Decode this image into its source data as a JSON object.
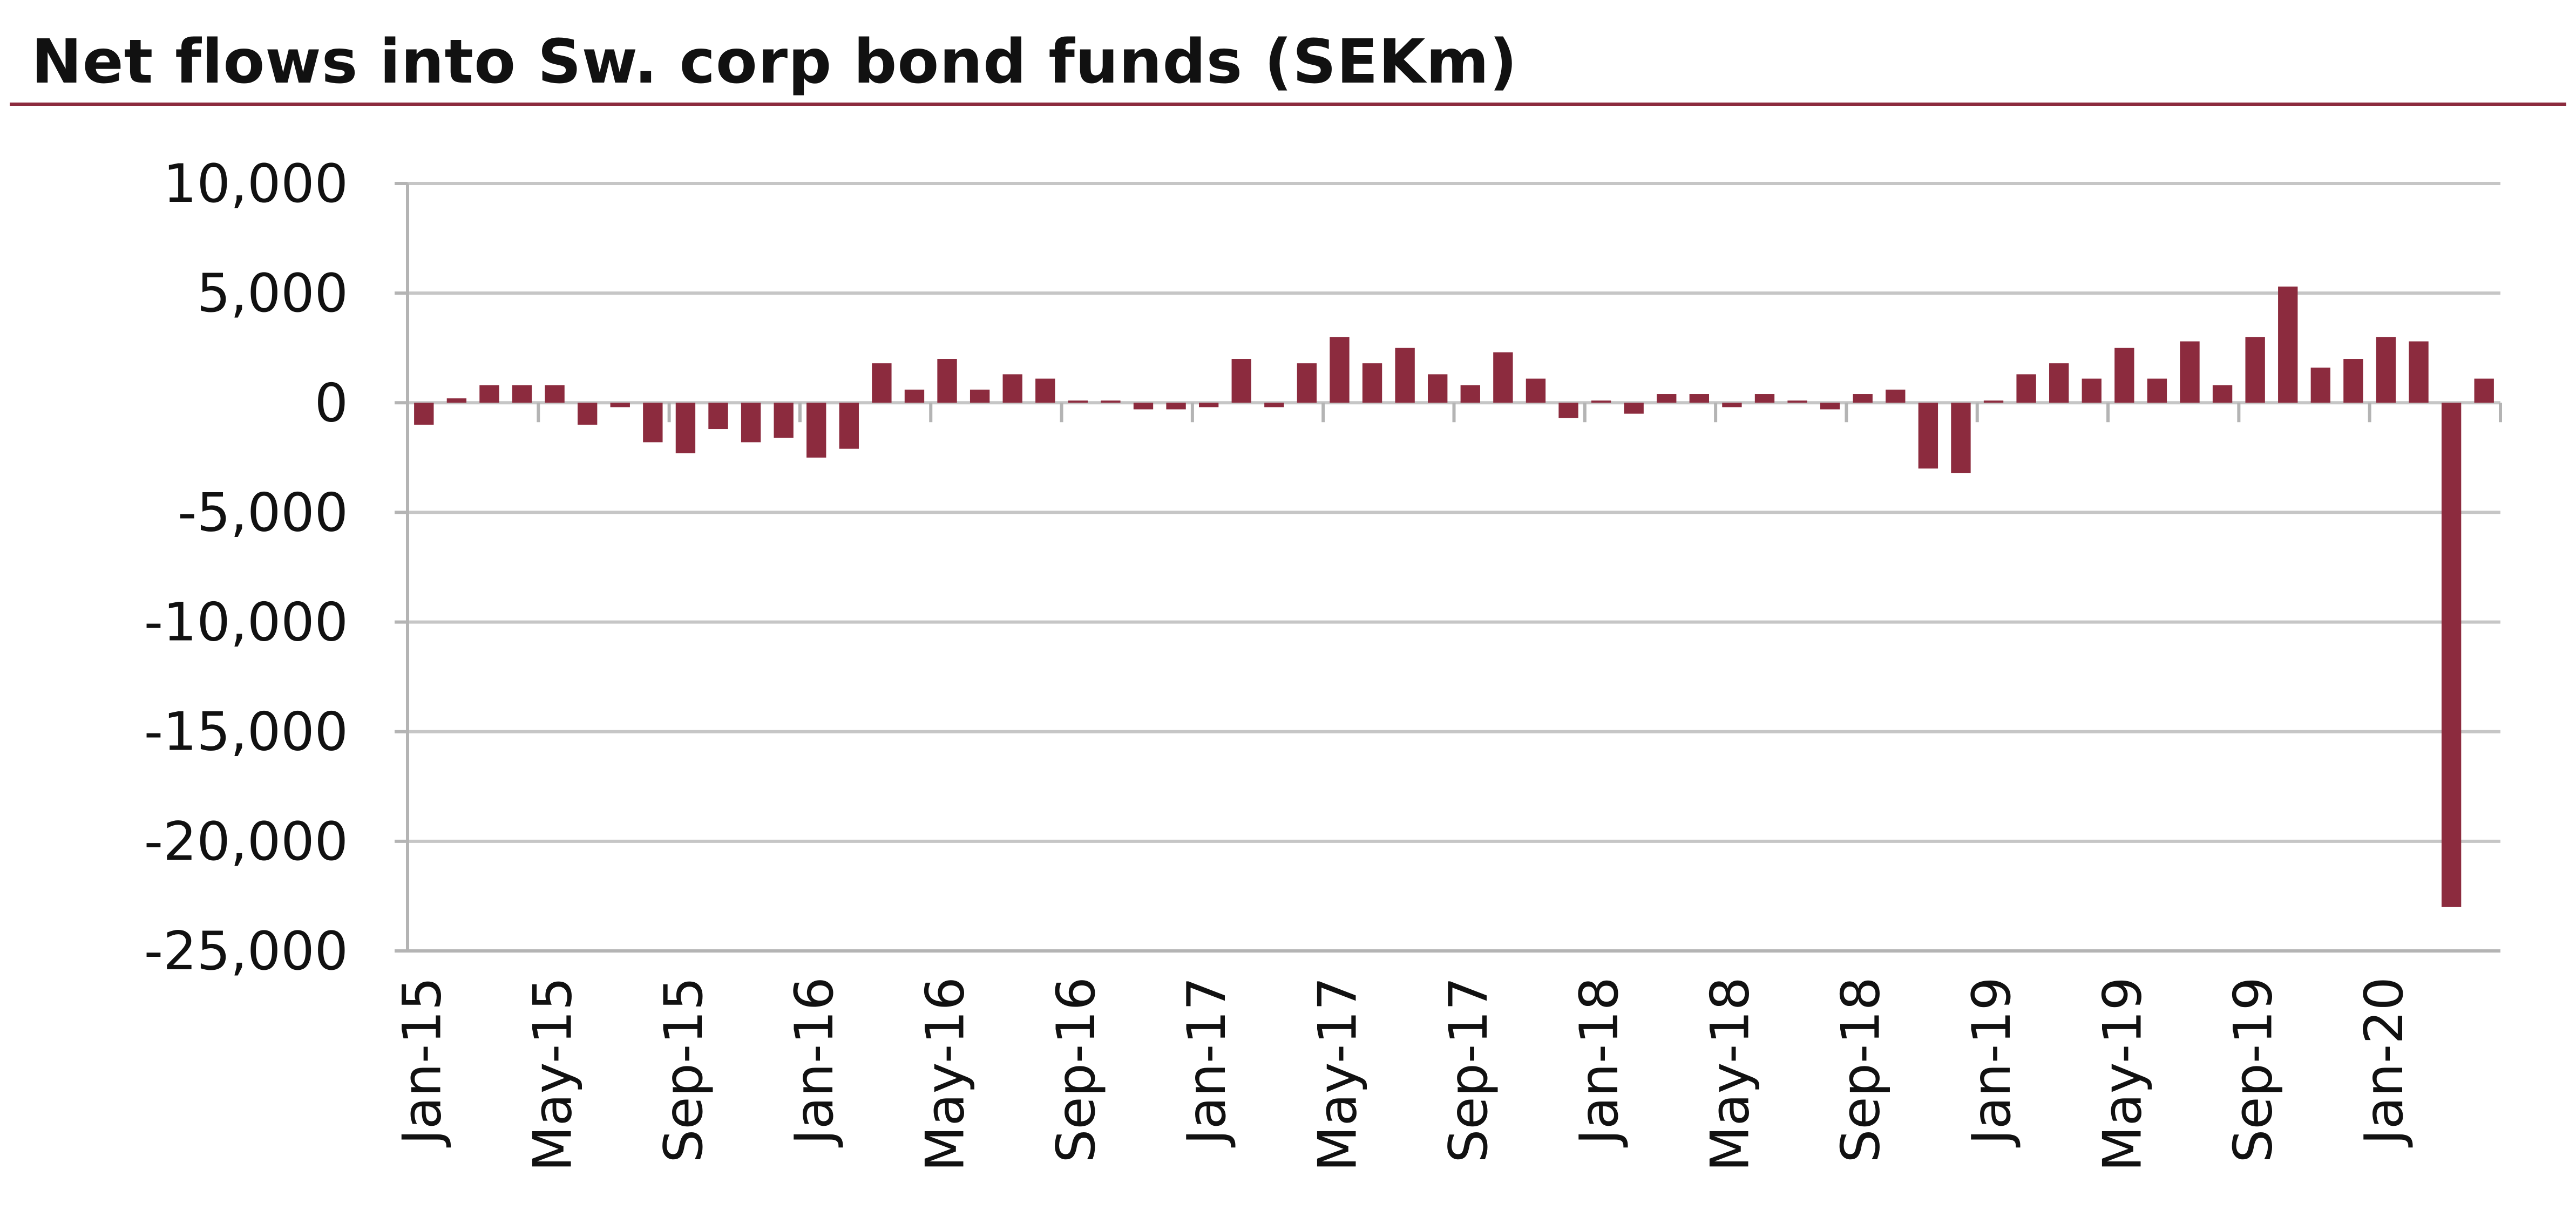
{
  "chart_data": {
    "type": "bar",
    "title": "Net flows into Sw. corp bond funds (SEKm)",
    "xlabel": "",
    "ylabel": "",
    "ylim": [
      -25000,
      10000
    ],
    "yticks": [
      10000,
      5000,
      0,
      -5000,
      -10000,
      -15000,
      -20000,
      -25000
    ],
    "ytick_labels": [
      "10,000",
      "5,000",
      "0",
      "-5,000",
      "-10,000",
      "-15,000",
      "-20,000",
      "-25,000"
    ],
    "grid": true,
    "legend": "none",
    "colors": {
      "bar": "#8c2b3e",
      "grid": "#c6c6c6",
      "axis": "#b4b4b4",
      "title_rule": "#8c2b3e"
    },
    "categories": [
      "Jan-15",
      "Feb-15",
      "Mar-15",
      "Apr-15",
      "May-15",
      "Jun-15",
      "Jul-15",
      "Aug-15",
      "Sep-15",
      "Oct-15",
      "Nov-15",
      "Dec-15",
      "Jan-16",
      "Feb-16",
      "Mar-16",
      "Apr-16",
      "May-16",
      "Jun-16",
      "Jul-16",
      "Aug-16",
      "Sep-16",
      "Oct-16",
      "Nov-16",
      "Dec-16",
      "Jan-17",
      "Feb-17",
      "Mar-17",
      "Apr-17",
      "May-17",
      "Jun-17",
      "Jul-17",
      "Aug-17",
      "Sep-17",
      "Oct-17",
      "Nov-17",
      "Dec-17",
      "Jan-18",
      "Feb-18",
      "Mar-18",
      "Apr-18",
      "May-18",
      "Jun-18",
      "Jul-18",
      "Aug-18",
      "Sep-18",
      "Oct-18",
      "Nov-18",
      "Dec-18",
      "Jan-19",
      "Feb-19",
      "Mar-19",
      "Apr-19",
      "May-19",
      "Jun-19",
      "Jul-19",
      "Aug-19",
      "Sep-19",
      "Oct-19",
      "Nov-19",
      "Dec-19",
      "Jan-20",
      "Feb-20",
      "Mar-20",
      "Apr-20"
    ],
    "values": [
      -1000,
      200,
      800,
      800,
      800,
      -1000,
      -200,
      -1800,
      -2300,
      -1200,
      -1800,
      -1600,
      -2500,
      -2100,
      1800,
      600,
      2000,
      600,
      1300,
      1100,
      100,
      100,
      -300,
      -300,
      -200,
      2000,
      -200,
      1800,
      3000,
      1800,
      2500,
      1300,
      800,
      2300,
      1100,
      -700,
      100,
      -500,
      400,
      400,
      -200,
      400,
      100,
      -300,
      400,
      600,
      -3000,
      -3200,
      100,
      1300,
      1800,
      1100,
      2500,
      1100,
      2800,
      800,
      3000,
      5300,
      1600,
      2000,
      3000,
      2800,
      -23000,
      1100
    ],
    "xtick_labels": [
      "Jan-15",
      "May-15",
      "Sep-15",
      "Jan-16",
      "May-16",
      "Sep-16",
      "Jan-17",
      "May-17",
      "Sep-17",
      "Jan-18",
      "May-18",
      "Sep-18",
      "Jan-19",
      "May-19",
      "Sep-19",
      "Jan-20"
    ]
  }
}
